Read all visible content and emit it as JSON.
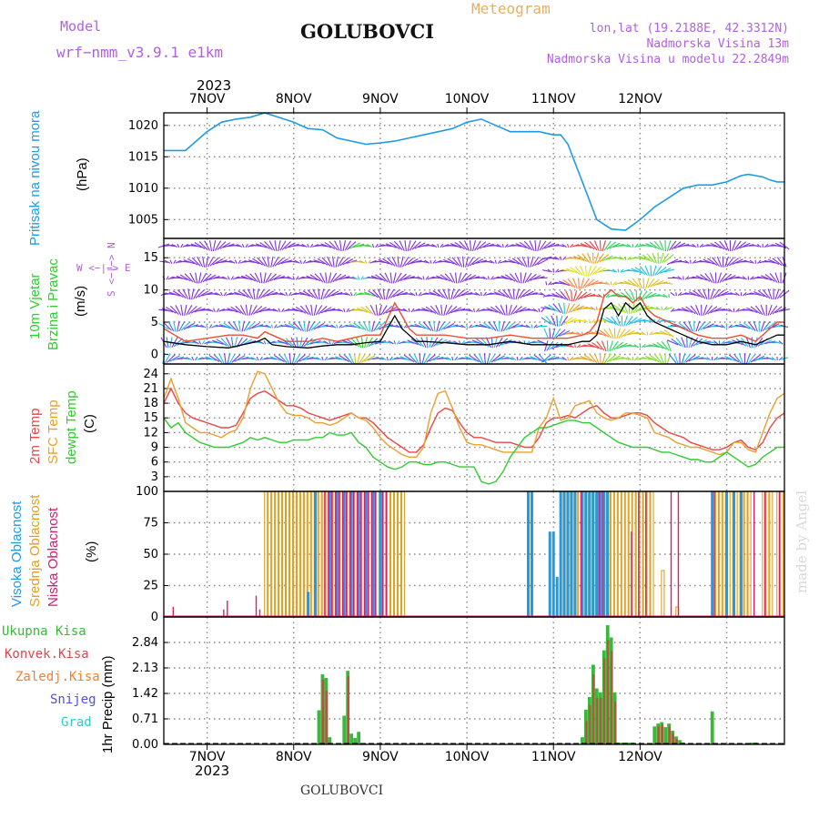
{
  "header": {
    "model_label": "Model",
    "model_name": "wrf−nmm_v3.9.1  e1km",
    "title": "GOLUBOVCI",
    "subtitle": "Meteogram",
    "coords": "lon,lat (19.2188E, 42.3312N)",
    "elev": "Nadmorska Visina 13m",
    "elev_model": "Nadmorska Visina u modelu 22.2849m",
    "year_top": "2023",
    "year_bottom": "2023",
    "footer": "GOLUBOVCI",
    "watermark": "made by Angel"
  },
  "colors": {
    "pressure": "#1e9be6",
    "wind_speed": "#000000",
    "wind_gust": "#e85030",
    "t2m": "#ee4444",
    "sfc": "#e8a030",
    "dewpt": "#30cc30",
    "high_cloud": "#1e9be6",
    "mid_cloud": "#e0a020",
    "low_cloud": "#d02070",
    "precip_total": "#3ab83a",
    "precip_conv": "#d04040",
    "label_purple": "#b060e0"
  },
  "panel_labels": {
    "pressure": [
      "Pritisak na nivou mora"
    ],
    "pressure_unit": "(hPa)",
    "wind": [
      "10m Vjetar",
      "Brzina i Pravac"
    ],
    "wind_unit": "(m/s)",
    "wind_compass": "W  <−|−>  E",
    "wind_compass_ns": "S <−|−> N",
    "temp": [
      "2m Temp",
      "SFC Temp",
      "dewpt Temp"
    ],
    "temp_unit": "(C)",
    "cloud": [
      "Visoka Oblacnost",
      "Srednja Oblacnost",
      "Niska  Oblacnost"
    ],
    "cloud_unit": "(%)",
    "precip": [
      "Ukupna  Kisa",
      "Konvek.Kisa",
      "Zaledj.Kisa",
      "Snijeg",
      "Grad"
    ],
    "precip_unit": "1hr Precip (mm)"
  },
  "chart_data": [
    {
      "type": "line",
      "id": "pressure",
      "ylabel": "(hPa)",
      "ylim": [
        1002,
        1022
      ],
      "yticks": [
        1005,
        1010,
        1015,
        1020
      ],
      "x_hours": [
        0,
        6,
        12,
        16,
        20,
        24,
        28,
        36,
        40,
        44,
        48,
        56,
        60,
        64,
        68,
        72,
        80,
        84,
        88,
        92,
        96,
        100,
        104,
        108,
        110,
        112,
        114,
        116,
        118,
        120,
        124,
        128,
        132,
        136,
        140,
        144,
        148,
        152,
        156,
        160,
        162,
        164,
        166,
        168,
        170,
        172
      ],
      "series": [
        {
          "name": "Pritisak na nivou mora",
          "values": [
            1016,
            1016,
            1019,
            1020.5,
            1021,
            1021.3,
            1022,
            1020.5,
            1019.5,
            1019.3,
            1018,
            1017,
            1017.2,
            1017.5,
            1018,
            1018.5,
            1019.5,
            1020.5,
            1021,
            1020,
            1019,
            1019,
            1019,
            1018.5,
            1018.5,
            1017,
            1014,
            1011,
            1008,
            1005,
            1003.5,
            1003.3,
            1005,
            1007,
            1008.5,
            1010,
            1010.5,
            1010.5,
            1011,
            1012,
            1012.2,
            1012.0,
            1011.8,
            1011.3,
            1011.0,
            1011
          ]
        }
      ]
    },
    {
      "type": "line",
      "id": "wind",
      "ylabel": "(m/s)",
      "ylim": [
        -1.5,
        18
      ],
      "yticks": [
        0,
        5,
        10,
        15
      ],
      "x_hours": [
        0,
        6,
        12,
        18,
        22,
        26,
        28,
        30,
        34,
        40,
        44,
        48,
        52,
        56,
        60,
        62,
        64,
        66,
        68,
        70,
        72,
        78,
        84,
        90,
        96,
        102,
        108,
        112,
        116,
        118,
        120,
        122,
        124,
        126,
        128,
        130,
        132,
        134,
        136,
        140,
        144,
        148,
        152,
        156,
        160,
        164,
        168,
        170,
        172
      ],
      "series": [
        {
          "name": "Brzina",
          "values": [
            2,
            1.5,
            1.2,
            1,
            1.5,
            2,
            2.5,
            1.5,
            1.2,
            1.0,
            1.3,
            1.5,
            1.5,
            1.8,
            2,
            4,
            6,
            4,
            3,
            2,
            2,
            1.8,
            1.5,
            1.5,
            2,
            1.5,
            1.5,
            1.5,
            2,
            2,
            3,
            7,
            8,
            6,
            8,
            7,
            8,
            6,
            5,
            4,
            3,
            2,
            1.5,
            1.5,
            2.0,
            1.5,
            2.5,
            3,
            3
          ]
        },
        {
          "name": "Udari",
          "values": [
            4,
            2,
            2.5,
            3,
            3,
            2.5,
            3.5,
            3,
            2,
            2,
            2.5,
            2,
            2.5,
            3,
            3,
            5.5,
            8,
            6,
            4,
            3,
            3,
            3,
            2.5,
            2.5,
            3,
            2.5,
            2.5,
            2.5,
            3,
            3.5,
            5,
            9,
            10,
            9,
            9,
            8,
            9,
            7,
            6,
            5,
            4,
            3,
            2.5,
            2.5,
            3,
            2,
            4,
            5,
            5
          ]
        }
      ]
    },
    {
      "type": "line",
      "id": "temp",
      "ylabel": "(C)",
      "ylim": [
        0,
        26
      ],
      "yticks": [
        3,
        6,
        9,
        12,
        15,
        18,
        21,
        24
      ],
      "x_hours": [
        0,
        2,
        4,
        6,
        8,
        10,
        12,
        14,
        16,
        18,
        20,
        22,
        24,
        26,
        28,
        30,
        32,
        34,
        36,
        38,
        40,
        42,
        44,
        46,
        48,
        50,
        52,
        54,
        56,
        58,
        60,
        62,
        64,
        66,
        68,
        70,
        72,
        74,
        76,
        78,
        80,
        82,
        84,
        86,
        88,
        90,
        92,
        94,
        96,
        98,
        100,
        102,
        104,
        106,
        108,
        110,
        112,
        114,
        116,
        118,
        120,
        122,
        124,
        126,
        128,
        130,
        132,
        134,
        136,
        138,
        140,
        142,
        144,
        146,
        148,
        150,
        152,
        154,
        156,
        158,
        160,
        162,
        164,
        166,
        168,
        170,
        172
      ],
      "series": [
        {
          "name": "2m Temp",
          "values": [
            18,
            21,
            18,
            16,
            15,
            14.5,
            14,
            13.5,
            13,
            13,
            13.5,
            16,
            19,
            20,
            20.5,
            19.5,
            18.5,
            17.5,
            17.5,
            17,
            16,
            15.5,
            15,
            14.5,
            15,
            15.5,
            16,
            15,
            15,
            14,
            12.5,
            11,
            10,
            9,
            8,
            8,
            9.5,
            13,
            16,
            17,
            16.5,
            14,
            12,
            11,
            11,
            10.5,
            10,
            10,
            10,
            9.5,
            9,
            9,
            11,
            14,
            15,
            15,
            15.5,
            15,
            16,
            17,
            17.5,
            16,
            15,
            15,
            15.5,
            16,
            16,
            15.5,
            14,
            13,
            12,
            11.5,
            11,
            10,
            9.5,
            9,
            8.5,
            8.5,
            9,
            10,
            10.5,
            9,
            8.5,
            10,
            13,
            15,
            16
          ]
        },
        {
          "name": "SFC Temp",
          "values": [
            19,
            23,
            19,
            14,
            13,
            12,
            12,
            11.5,
            11,
            12,
            12.5,
            15,
            21,
            24.5,
            24,
            21,
            18,
            16,
            15.5,
            15.5,
            15,
            14,
            14,
            13.5,
            14,
            15,
            16,
            15,
            14.5,
            13,
            11,
            9.5,
            8.5,
            7.5,
            7,
            7,
            9,
            16,
            20,
            20.5,
            17,
            13,
            10,
            9.5,
            9.5,
            9,
            8.5,
            8,
            8,
            8,
            8,
            8,
            13,
            15,
            19,
            14.5,
            15,
            17.5,
            18,
            18.5,
            16,
            15,
            14.5,
            15,
            16,
            16,
            15.5,
            15,
            12,
            11.5,
            11,
            10,
            9.5,
            9,
            9,
            8.5,
            8,
            7.5,
            8,
            10,
            10,
            8.5,
            8,
            12,
            16,
            19,
            20
          ]
        },
        {
          "name": "dewpt Temp",
          "values": [
            15,
            13,
            14,
            12,
            11,
            10,
            9.5,
            9,
            9,
            9,
            9.5,
            10,
            11,
            10.5,
            11,
            10.5,
            10,
            10,
            10.5,
            10.5,
            10.5,
            11,
            11,
            12,
            11.5,
            11.5,
            12,
            10,
            9,
            7,
            6,
            5,
            4.5,
            5,
            6,
            6,
            5.5,
            5.5,
            6,
            6,
            5.5,
            5,
            5,
            5,
            2,
            1.5,
            2,
            4,
            7,
            9,
            11,
            12,
            13,
            13,
            13.5,
            14,
            14.5,
            14.5,
            14,
            14,
            13,
            12,
            11,
            10,
            9.5,
            9,
            9,
            9,
            8.5,
            8,
            8,
            7.5,
            7,
            6.5,
            6.5,
            6,
            6,
            7,
            8,
            7,
            6,
            5,
            5.5,
            7,
            8,
            9,
            9
          ]
        }
      ]
    },
    {
      "type": "bar",
      "id": "cloud",
      "ylabel": "(%)",
      "ylim": [
        0,
        100
      ],
      "yticks": [
        0,
        25,
        50,
        75,
        100
      ],
      "series": [
        {
          "name": "Visoka Oblacnost",
          "x_hours": [
            40,
            42,
            46,
            48,
            50,
            52,
            54,
            56,
            58,
            60,
            101,
            102,
            107,
            108,
            109,
            110,
            111,
            112,
            113,
            114,
            116,
            117,
            118,
            119,
            120,
            121,
            122,
            123,
            152,
            156,
            158,
            160
          ],
          "values": [
            20,
            100,
            100,
            100,
            100,
            100,
            100,
            100,
            100,
            100,
            100,
            100,
            68,
            68,
            32,
            100,
            100,
            100,
            100,
            100,
            100,
            100,
            100,
            100,
            100,
            100,
            100,
            100,
            100,
            100,
            100,
            100
          ]
        },
        {
          "name": "Srednja Oblacnost",
          "x_hours": [
            28,
            29,
            30,
            31,
            32,
            33,
            34,
            35,
            36,
            37,
            38,
            39,
            40,
            41,
            42,
            43,
            44,
            45,
            46,
            47,
            48,
            49,
            50,
            51,
            52,
            53,
            54,
            55,
            56,
            57,
            58,
            59,
            60,
            61,
            62,
            63,
            64,
            65,
            66,
            110,
            111,
            112,
            113,
            114,
            115,
            116,
            117,
            118,
            119,
            120,
            121,
            122,
            123,
            124,
            125,
            126,
            127,
            128,
            129,
            130,
            131,
            132,
            133,
            134,
            135,
            138,
            142,
            153,
            154,
            155,
            157,
            159,
            160,
            161,
            162,
            166,
            167,
            168,
            170,
            171
          ],
          "values": [
            100,
            100,
            100,
            100,
            100,
            100,
            100,
            100,
            100,
            100,
            100,
            100,
            100,
            100,
            100,
            100,
            100,
            100,
            100,
            100,
            100,
            100,
            100,
            100,
            100,
            100,
            100,
            100,
            100,
            100,
            100,
            100,
            100,
            100,
            100,
            100,
            100,
            100,
            100,
            100,
            100,
            100,
            100,
            100,
            100,
            100,
            100,
            100,
            100,
            100,
            100,
            100,
            100,
            100,
            100,
            100,
            100,
            100,
            100,
            100,
            100,
            100,
            100,
            100,
            100,
            37,
            8,
            100,
            100,
            100,
            100,
            100,
            100,
            100,
            100,
            100,
            100,
            100,
            100,
            100
          ]
        },
        {
          "name": "Niska Oblacnost",
          "x_hours": [
            2,
            16,
            17,
            25,
            26,
            44,
            45,
            46,
            47,
            48,
            49,
            50,
            51,
            52,
            53,
            54,
            55,
            56,
            57,
            58,
            60,
            61,
            115,
            120,
            121,
            129,
            131,
            133,
            140,
            142,
            152,
            163,
            166,
            170
          ],
          "values": [
            8,
            6,
            13,
            17,
            6,
            100,
            100,
            100,
            100,
            100,
            100,
            100,
            100,
            100,
            100,
            100,
            100,
            100,
            100,
            100,
            100,
            100,
            100,
            100,
            100,
            68,
            100,
            100,
            100,
            100,
            100,
            100,
            100,
            100
          ]
        }
      ]
    },
    {
      "type": "bar",
      "id": "precip",
      "ylabel": "1hr Precip (mm)",
      "ylim": [
        0,
        3.55
      ],
      "yticks": [
        0,
        0.71,
        1.42,
        2.13,
        2.84
      ],
      "series": [
        {
          "name": "Ukupna Kisa",
          "x_hours": [
            43,
            44,
            45,
            46,
            50,
            51,
            52,
            53,
            54,
            55,
            56,
            112,
            116,
            117,
            118,
            119,
            120,
            121,
            122,
            123,
            124,
            125,
            126,
            127,
            128,
            129,
            130,
            136,
            137,
            138,
            139,
            140,
            141,
            142,
            143,
            144,
            152,
            163,
            164
          ],
          "values": [
            0.95,
            1.95,
            1.85,
            0.2,
            0.8,
            2.05,
            0.3,
            0.18,
            0.35,
            0.02,
            0.02,
            0.03,
            0.2,
            0.97,
            1.32,
            2.22,
            1.56,
            1.45,
            2.62,
            3.32,
            2.98,
            1.45,
            0.05,
            0.05,
            0.05,
            0.05,
            0.05,
            0.5,
            0.58,
            0.62,
            0.48,
            0.58,
            0.38,
            0.22,
            0.12,
            0.05,
            0.92,
            0.05,
            0.05
          ]
        },
        {
          "name": "Konvek.Kisa",
          "x_hours": [
            44,
            45,
            51,
            117,
            118,
            119,
            120,
            121,
            122,
            123,
            124,
            125,
            137,
            138,
            140,
            141,
            142
          ],
          "values": [
            1.8,
            1.5,
            1.9,
            0.65,
            1.1,
            1.95,
            1.3,
            1.3,
            2.4,
            2.9,
            2.6,
            1.2,
            0.5,
            0.55,
            0.5,
            0.3,
            0.15
          ]
        }
      ]
    }
  ],
  "x_axis": {
    "ticks_hours": [
      12,
      36,
      60,
      84,
      108,
      132,
      156
    ],
    "tick_labels": [
      "7NOV",
      "8NOV",
      "9NOV",
      "10NOV",
      "11NOV",
      "12NOV"
    ],
    "hours_total": 172
  }
}
